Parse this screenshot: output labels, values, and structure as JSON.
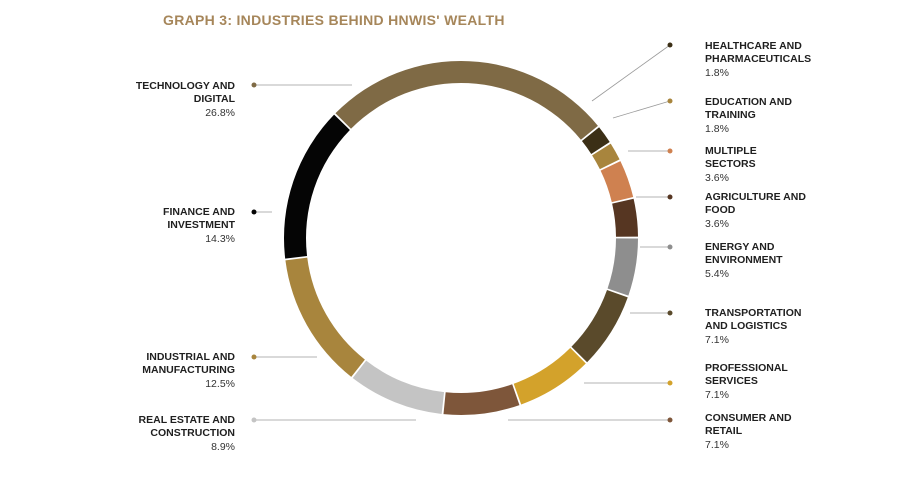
{
  "title": "GRAPH 3: INDUSTRIES BEHIND HNWIS' WEALTH",
  "chart_data": {
    "type": "pie",
    "title": "GRAPH 3: INDUSTRIES BEHIND HNWIS' WEALTH",
    "slices": [
      {
        "label": "Technology and Digital",
        "display": "TECHNOLOGY AND\nDIGITAL",
        "value": 26.8,
        "value_label": "26.8%",
        "color": "#7f6a45",
        "side": "left"
      },
      {
        "label": "Healthcare and Pharmaceuticals",
        "display": "HEALTHCARE AND\nPHARMACEUTICALS",
        "value": 1.8,
        "value_label": "1.8%",
        "color": "#3b2f16",
        "side": "right"
      },
      {
        "label": "Education and Training",
        "display": "EDUCATION AND\nTRAINING",
        "value": 1.8,
        "value_label": "1.8%",
        "color": "#a8853d",
        "side": "right"
      },
      {
        "label": "Multiple Sectors",
        "display": "MULTIPLE\nSECTORS",
        "value": 3.6,
        "value_label": "3.6%",
        "color": "#cf8150",
        "side": "right"
      },
      {
        "label": "Agriculture and Food",
        "display": "AGRICULTURE AND\nFOOD",
        "value": 3.6,
        "value_label": "3.6%",
        "color": "#563622",
        "side": "right"
      },
      {
        "label": "Energy and Environment",
        "display": "ENERGY AND\nENVIRONMENT",
        "value": 5.4,
        "value_label": "5.4%",
        "color": "#8e8e8e",
        "side": "right"
      },
      {
        "label": "Transportation and Logistics",
        "display": "TRANSPORTATION\nAND LOGISTICS",
        "value": 7.1,
        "value_label": "7.1%",
        "color": "#5a4a2b",
        "side": "right"
      },
      {
        "label": "Professional Services",
        "display": "PROFESSIONAL\nSERVICES",
        "value": 7.1,
        "value_label": "7.1%",
        "color": "#d3a22b",
        "side": "right"
      },
      {
        "label": "Consumer and Retail",
        "display": "CONSUMER AND\nRETAIL",
        "value": 7.1,
        "value_label": "7.1%",
        "color": "#7e563a",
        "side": "right"
      },
      {
        "label": "Real Estate and Construction",
        "display": "REAL ESTATE AND\nCONSTRUCTION",
        "value": 8.9,
        "value_label": "8.9%",
        "color": "#c4c4c4",
        "side": "left"
      },
      {
        "label": "Industrial and Manufacturing",
        "display": "INDUSTRIAL AND\nMANUFACTURING",
        "value": 12.5,
        "value_label": "12.5%",
        "color": "#a8853d",
        "side": "left"
      },
      {
        "label": "Finance and Investment",
        "display": "FINANCE AND\nINVESTMENT",
        "value": 14.3,
        "value_label": "14.3%",
        "color": "#050505",
        "side": "left"
      }
    ]
  }
}
